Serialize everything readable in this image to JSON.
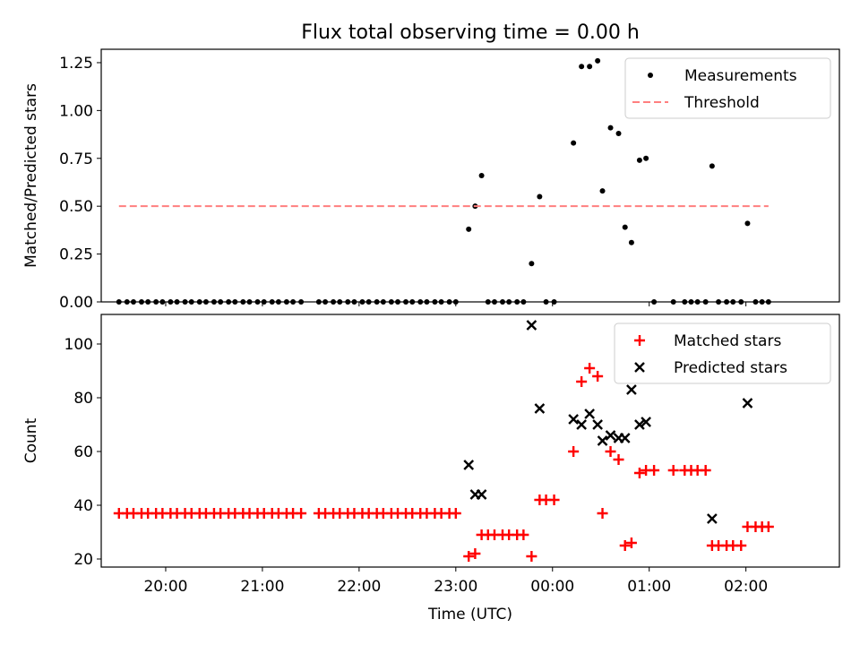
{
  "figure": {
    "title": "Flux total observing time = 0.00 h"
  },
  "chart_data": [
    {
      "type": "scatter",
      "panel": "top",
      "ylabel": "Matched/Predicted stars",
      "xlabel": "",
      "xlim": [
        "19:20",
        "02:58"
      ],
      "ylim": [
        0,
        1.32
      ],
      "yticks": [
        0.0,
        0.25,
        0.5,
        0.75,
        1.0,
        1.25
      ],
      "ytick_labels": [
        "0.00",
        "0.25",
        "0.50",
        "0.75",
        "1.00",
        "1.25"
      ],
      "legend_position": "top-right",
      "legend": [
        "Measurements",
        "Threshold"
      ],
      "series": [
        {
          "name": "Measurements",
          "marker": "dot",
          "color": "#000000",
          "points": [
            [
              "19:31",
              0
            ],
            [
              "19:36",
              0
            ],
            [
              "19:40",
              0
            ],
            [
              "19:45",
              0
            ],
            [
              "19:49",
              0
            ],
            [
              "19:54",
              0
            ],
            [
              "19:58",
              0
            ],
            [
              "20:03",
              0
            ],
            [
              "20:07",
              0
            ],
            [
              "20:12",
              0
            ],
            [
              "20:16",
              0
            ],
            [
              "20:21",
              0
            ],
            [
              "20:25",
              0
            ],
            [
              "20:30",
              0
            ],
            [
              "20:34",
              0
            ],
            [
              "20:39",
              0
            ],
            [
              "20:43",
              0
            ],
            [
              "20:48",
              0
            ],
            [
              "20:52",
              0
            ],
            [
              "20:57",
              0
            ],
            [
              "21:01",
              0
            ],
            [
              "21:06",
              0
            ],
            [
              "21:10",
              0
            ],
            [
              "21:15",
              0
            ],
            [
              "21:19",
              0
            ],
            [
              "21:24",
              0
            ],
            [
              "21:35",
              0
            ],
            [
              "21:39",
              0
            ],
            [
              "21:44",
              0
            ],
            [
              "21:48",
              0
            ],
            [
              "21:53",
              0
            ],
            [
              "21:57",
              0
            ],
            [
              "22:02",
              0
            ],
            [
              "22:06",
              0
            ],
            [
              "22:11",
              0
            ],
            [
              "22:15",
              0
            ],
            [
              "22:20",
              0
            ],
            [
              "22:24",
              0
            ],
            [
              "22:29",
              0
            ],
            [
              "22:33",
              0
            ],
            [
              "22:38",
              0
            ],
            [
              "22:42",
              0
            ],
            [
              "22:47",
              0
            ],
            [
              "22:51",
              0
            ],
            [
              "22:56",
              0
            ],
            [
              "23:00",
              0
            ],
            [
              "23:08",
              0.38
            ],
            [
              "23:12",
              0.5
            ],
            [
              "23:16",
              0.66
            ],
            [
              "23:20",
              0
            ],
            [
              "23:24",
              0
            ],
            [
              "23:29",
              0
            ],
            [
              "23:33",
              0
            ],
            [
              "23:38",
              0
            ],
            [
              "23:42",
              0
            ],
            [
              "23:47",
              0.2
            ],
            [
              "23:52",
              0.55
            ],
            [
              "23:56",
              0
            ],
            [
              "24:01",
              0
            ],
            [
              "24:13",
              0.83
            ],
            [
              "24:18",
              1.23
            ],
            [
              "24:23",
              1.23
            ],
            [
              "24:28",
              1.26
            ],
            [
              "24:31",
              0.58
            ],
            [
              "24:36",
              0.91
            ],
            [
              "24:41",
              0.88
            ],
            [
              "24:45",
              0.39
            ],
            [
              "24:49",
              0.31
            ],
            [
              "24:54",
              0.74
            ],
            [
              "24:58",
              0.75
            ],
            [
              "25:03",
              0
            ],
            [
              "25:15",
              0
            ],
            [
              "25:22",
              0
            ],
            [
              "25:26",
              0
            ],
            [
              "25:30",
              0
            ],
            [
              "25:35",
              0
            ],
            [
              "25:39",
              0.71
            ],
            [
              "25:43",
              0
            ],
            [
              "25:48",
              0
            ],
            [
              "25:52",
              0
            ],
            [
              "25:57",
              0
            ],
            [
              "26:01",
              0.41
            ],
            [
              "26:06",
              0
            ],
            [
              "26:10",
              0
            ],
            [
              "26:14",
              0
            ]
          ]
        },
        {
          "name": "Threshold",
          "marker": "dashed-line",
          "color": "#ff7f7f",
          "points": [
            [
              "19:31",
              0.5
            ],
            [
              "26:14",
              0.5
            ]
          ]
        }
      ]
    },
    {
      "type": "scatter",
      "panel": "bottom",
      "ylabel": "Count",
      "xlabel": "Time (UTC)",
      "xlim": [
        "19:20",
        "02:58"
      ],
      "ylim": [
        17,
        111
      ],
      "yticks": [
        20,
        40,
        60,
        80,
        100
      ],
      "ytick_labels": [
        "20",
        "40",
        "60",
        "80",
        "100"
      ],
      "xticks": [
        "20:00",
        "21:00",
        "22:00",
        "23:00",
        "24:00",
        "25:00",
        "26:00"
      ],
      "xtick_labels": [
        "20:00",
        "21:00",
        "22:00",
        "23:00",
        "00:00",
        "01:00",
        "02:00"
      ],
      "legend_position": "top-right",
      "legend": [
        "Matched stars",
        "Predicted stars"
      ],
      "series": [
        {
          "name": "Matched stars",
          "marker": "plus",
          "color": "#ff0000",
          "points": [
            [
              "19:31",
              37
            ],
            [
              "19:36",
              37
            ],
            [
              "19:40",
              37
            ],
            [
              "19:45",
              37
            ],
            [
              "19:49",
              37
            ],
            [
              "19:54",
              37
            ],
            [
              "19:58",
              37
            ],
            [
              "20:03",
              37
            ],
            [
              "20:07",
              37
            ],
            [
              "20:12",
              37
            ],
            [
              "20:16",
              37
            ],
            [
              "20:21",
              37
            ],
            [
              "20:25",
              37
            ],
            [
              "20:30",
              37
            ],
            [
              "20:34",
              37
            ],
            [
              "20:39",
              37
            ],
            [
              "20:43",
              37
            ],
            [
              "20:48",
              37
            ],
            [
              "20:52",
              37
            ],
            [
              "20:57",
              37
            ],
            [
              "21:01",
              37
            ],
            [
              "21:06",
              37
            ],
            [
              "21:10",
              37
            ],
            [
              "21:15",
              37
            ],
            [
              "21:19",
              37
            ],
            [
              "21:24",
              37
            ],
            [
              "21:35",
              37
            ],
            [
              "21:39",
              37
            ],
            [
              "21:44",
              37
            ],
            [
              "21:48",
              37
            ],
            [
              "21:53",
              37
            ],
            [
              "21:57",
              37
            ],
            [
              "22:02",
              37
            ],
            [
              "22:06",
              37
            ],
            [
              "22:11",
              37
            ],
            [
              "22:15",
              37
            ],
            [
              "22:20",
              37
            ],
            [
              "22:24",
              37
            ],
            [
              "22:29",
              37
            ],
            [
              "22:33",
              37
            ],
            [
              "22:38",
              37
            ],
            [
              "22:42",
              37
            ],
            [
              "22:47",
              37
            ],
            [
              "22:51",
              37
            ],
            [
              "22:56",
              37
            ],
            [
              "23:00",
              37
            ],
            [
              "23:08",
              21
            ],
            [
              "23:12",
              22
            ],
            [
              "23:16",
              29
            ],
            [
              "23:20",
              29
            ],
            [
              "23:24",
              29
            ],
            [
              "23:29",
              29
            ],
            [
              "23:33",
              29
            ],
            [
              "23:38",
              29
            ],
            [
              "23:42",
              29
            ],
            [
              "23:47",
              21
            ],
            [
              "23:52",
              42
            ],
            [
              "23:56",
              42
            ],
            [
              "24:01",
              42
            ],
            [
              "24:13",
              60
            ],
            [
              "24:18",
              86
            ],
            [
              "24:23",
              91
            ],
            [
              "24:28",
              88
            ],
            [
              "24:31",
              37
            ],
            [
              "24:36",
              60
            ],
            [
              "24:41",
              57
            ],
            [
              "24:45",
              25
            ],
            [
              "24:49",
              26
            ],
            [
              "24:54",
              52
            ],
            [
              "24:58",
              53
            ],
            [
              "25:03",
              53
            ],
            [
              "25:15",
              53
            ],
            [
              "25:22",
              53
            ],
            [
              "25:26",
              53
            ],
            [
              "25:30",
              53
            ],
            [
              "25:35",
              53
            ],
            [
              "25:39",
              25
            ],
            [
              "25:43",
              25
            ],
            [
              "25:48",
              25
            ],
            [
              "25:52",
              25
            ],
            [
              "25:57",
              25
            ],
            [
              "26:01",
              32
            ],
            [
              "26:06",
              32
            ],
            [
              "26:10",
              32
            ],
            [
              "26:14",
              32
            ]
          ]
        },
        {
          "name": "Predicted stars",
          "marker": "x",
          "color": "#000000",
          "points": [
            [
              "23:08",
              55
            ],
            [
              "23:12",
              44
            ],
            [
              "23:16",
              44
            ],
            [
              "23:47",
              107
            ],
            [
              "23:52",
              76
            ],
            [
              "24:13",
              72
            ],
            [
              "24:18",
              70
            ],
            [
              "24:23",
              74
            ],
            [
              "24:28",
              70
            ],
            [
              "24:31",
              64
            ],
            [
              "24:36",
              66
            ],
            [
              "24:41",
              65
            ],
            [
              "24:45",
              65
            ],
            [
              "24:49",
              83
            ],
            [
              "24:54",
              70
            ],
            [
              "24:58",
              71
            ],
            [
              "25:39",
              35
            ],
            [
              "26:01",
              78
            ]
          ]
        }
      ]
    }
  ]
}
